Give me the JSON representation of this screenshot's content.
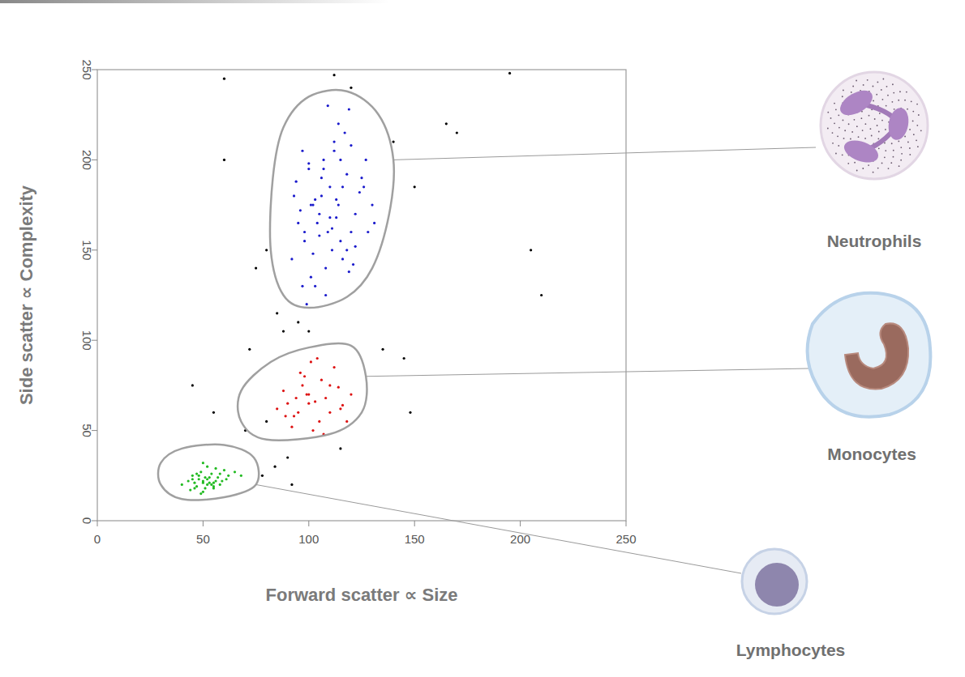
{
  "chart_data": {
    "type": "scatter",
    "x_label": "Forward scatter ∝ Size",
    "y_label": "Side scatter ∝ Complexity",
    "xlim": [
      0,
      250
    ],
    "ylim": [
      0,
      250
    ],
    "xticks": [
      0,
      50,
      100,
      150,
      200,
      250
    ],
    "yticks": [
      0,
      50,
      100,
      150,
      200,
      250
    ],
    "grid": false,
    "series": [
      {
        "name": "Neutrophils",
        "color": "#1a1acc",
        "marker": "dot",
        "x": [
          105,
          110,
          98,
          115,
          120,
          102,
          108,
          95,
          112,
          125,
          118,
          100,
          106,
          92,
          130,
          114,
          103,
          97,
          122,
          109,
          116,
          101,
          111,
          94,
          127,
          119,
          104,
          99,
          113,
          107,
          121,
          96,
          117,
          105,
          124,
          110,
          100,
          115,
          108,
          128,
          93,
          112,
          119,
          102,
          106,
          131,
          98,
          114,
          109,
          120,
          103,
          116,
          111,
          126,
          97,
          107,
          113,
          122,
          101,
          118
        ],
        "values": [
          170,
          185,
          155,
          200,
          160,
          175,
          140,
          165,
          210,
          190,
          150,
          195,
          180,
          145,
          175,
          220,
          130,
          205,
          170,
          160,
          185,
          135,
          150,
          188,
          200,
          228,
          165,
          120,
          178,
          195,
          142,
          172,
          215,
          158,
          182,
          168,
          198,
          155,
          125,
          160,
          180,
          205,
          138,
          148,
          190,
          165,
          160,
          175,
          230,
          208,
          178,
          145,
          162,
          185,
          130,
          200,
          168,
          152,
          175,
          192
        ],
        "gate": {
          "x": [
            100,
            118,
            130,
            138,
            140,
            133,
            118,
            100,
            88,
            83,
            82,
            88
          ],
          "y": [
            118,
            124,
            140,
            170,
            200,
            225,
            238,
            235,
            218,
            190,
            150,
            125
          ]
        }
      },
      {
        "name": "Monocytes",
        "color": "#dd1111",
        "marker": "dot",
        "x": [
          95,
          100,
          105,
          110,
          90,
          115,
          98,
          102,
          88,
          108,
          120,
          93,
          112,
          85,
          104,
          97,
          118,
          100,
          106,
          92,
          110,
          96,
          103,
          114,
          89,
          101,
          107,
          99,
          116,
          94
        ],
        "values": [
          60,
          70,
          55,
          75,
          65,
          62,
          80,
          50,
          72,
          68,
          70,
          58,
          85,
          62,
          90,
          75,
          55,
          65,
          78,
          52,
          60,
          82,
          66,
          74,
          58,
          88,
          48,
          70,
          64,
          68
        ],
        "gate": {
          "x": [
            80,
            110,
            125,
            127,
            120,
            100,
            82,
            68,
            68
          ],
          "y": [
            45,
            48,
            60,
            80,
            97,
            96,
            88,
            72,
            55
          ]
        }
      },
      {
        "name": "Lymphocytes",
        "color": "#22bb22",
        "marker": "dot",
        "x": [
          50,
          52,
          48,
          55,
          45,
          58,
          53,
          47,
          60,
          51,
          44,
          56,
          49,
          54,
          62,
          46,
          50,
          57,
          52,
          43,
          65,
          48,
          55,
          51,
          59,
          47,
          53,
          50,
          40,
          56,
          61,
          49,
          54,
          46,
          52,
          58,
          50,
          45,
          55,
          68
        ],
        "values": [
          22,
          20,
          25,
          18,
          23,
          26,
          21,
          19,
          28,
          24,
          17,
          22,
          27,
          20,
          25,
          21,
          16,
          24,
          30,
          22,
          27,
          23,
          19,
          18,
          22,
          26,
          24,
          21,
          20,
          29,
          23,
          15,
          26,
          18,
          23,
          20,
          32,
          25,
          21,
          25
        ],
        "gate": {
          "x": [
            30,
            40,
            60,
            75,
            74,
            60,
            40,
            30
          ],
          "y": [
            20,
            12,
            13,
            20,
            35,
            42,
            40,
            32
          ]
        }
      },
      {
        "color": "#000000",
        "marker": "dot",
        "x": [
          60,
          80,
          88,
          95,
          75,
          140,
          150,
          170,
          205,
          210,
          84,
          90,
          78,
          70,
          145,
          135,
          115,
          100,
          60,
          45,
          55,
          120,
          165,
          195,
          85,
          92,
          80,
          148,
          72,
          112
        ],
        "values": [
          245,
          150,
          105,
          110,
          140,
          210,
          185,
          215,
          150,
          125,
          30,
          35,
          25,
          50,
          90,
          95,
          40,
          105,
          200,
          75,
          60,
          240,
          220,
          248,
          115,
          20,
          55,
          60,
          95,
          247
        ]
      }
    ]
  }
}
